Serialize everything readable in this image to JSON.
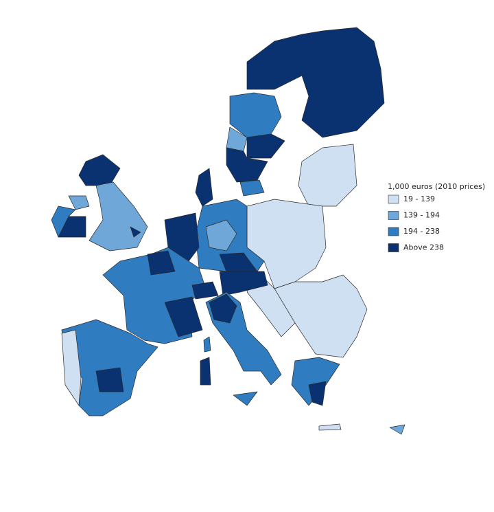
{
  "legend": {
    "title": "1,000 euros (2010 prices)",
    "items": [
      {
        "label": "19 - 139",
        "color": "#cfe0f2"
      },
      {
        "label": "139 - 194",
        "color": "#6fa8d8"
      },
      {
        "label": "194 - 238",
        "color": "#2f7cc0"
      },
      {
        "label": "Above 238",
        "color": "#0a3270"
      }
    ]
  }
}
